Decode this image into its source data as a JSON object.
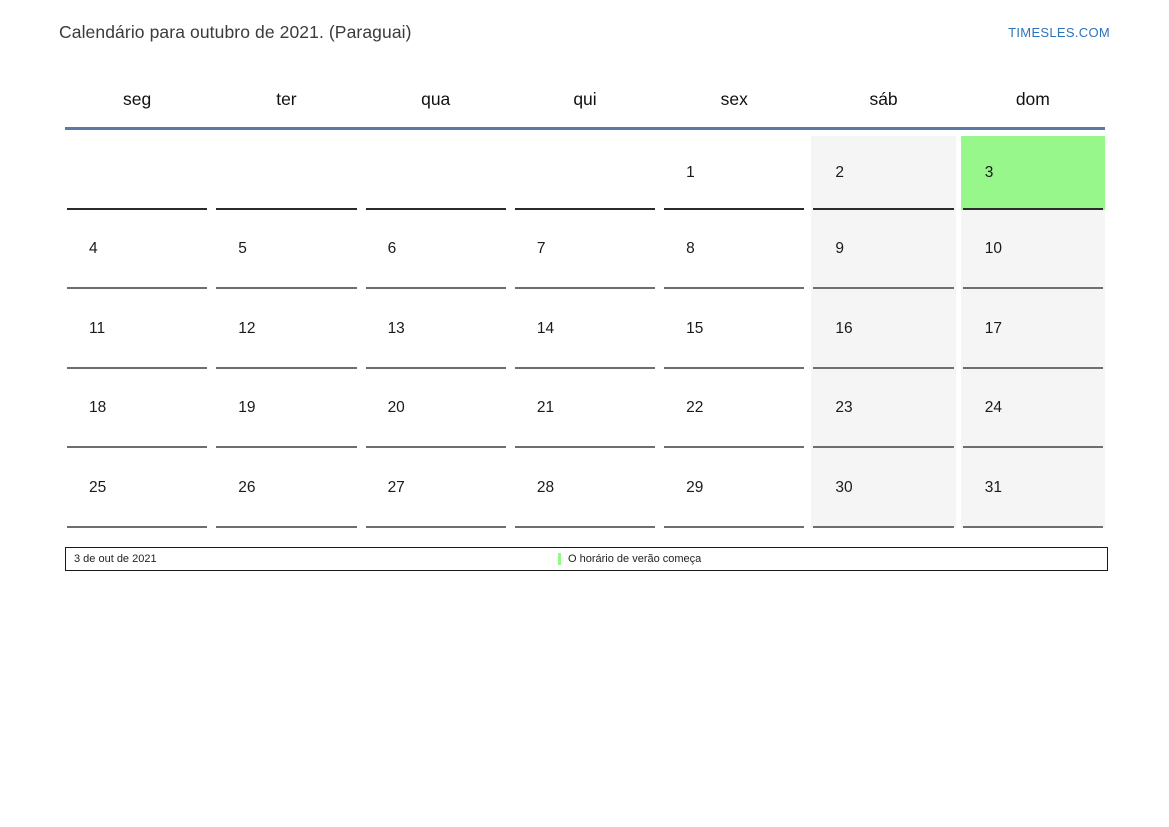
{
  "header": {
    "title": "Calendário para outubro de 2021. (Paraguai)",
    "site_link": "TIMESLES.COM"
  },
  "calendar": {
    "month": "outubro",
    "year": "2021",
    "country": "Paraguai",
    "day_headers": [
      "seg",
      "ter",
      "qua",
      "qui",
      "sex",
      "sáb",
      "dom"
    ],
    "weeks": [
      [
        "",
        "",
        "",
        "",
        "1",
        "2",
        "3"
      ],
      [
        "4",
        "5",
        "6",
        "7",
        "8",
        "9",
        "10"
      ],
      [
        "11",
        "12",
        "13",
        "14",
        "15",
        "16",
        "17"
      ],
      [
        "18",
        "19",
        "20",
        "21",
        "22",
        "23",
        "24"
      ],
      [
        "25",
        "26",
        "27",
        "28",
        "29",
        "30",
        "31"
      ]
    ],
    "highlighted_date": "3"
  },
  "legend": {
    "date": "3 de out de 2021",
    "event": "O horário de verão começa"
  },
  "colors": {
    "highlight_green": "#97f78a",
    "weekend_gray": "#f5f5f5",
    "header_line_blue": "#5a7ba6",
    "link_blue": "#2d73b9"
  }
}
